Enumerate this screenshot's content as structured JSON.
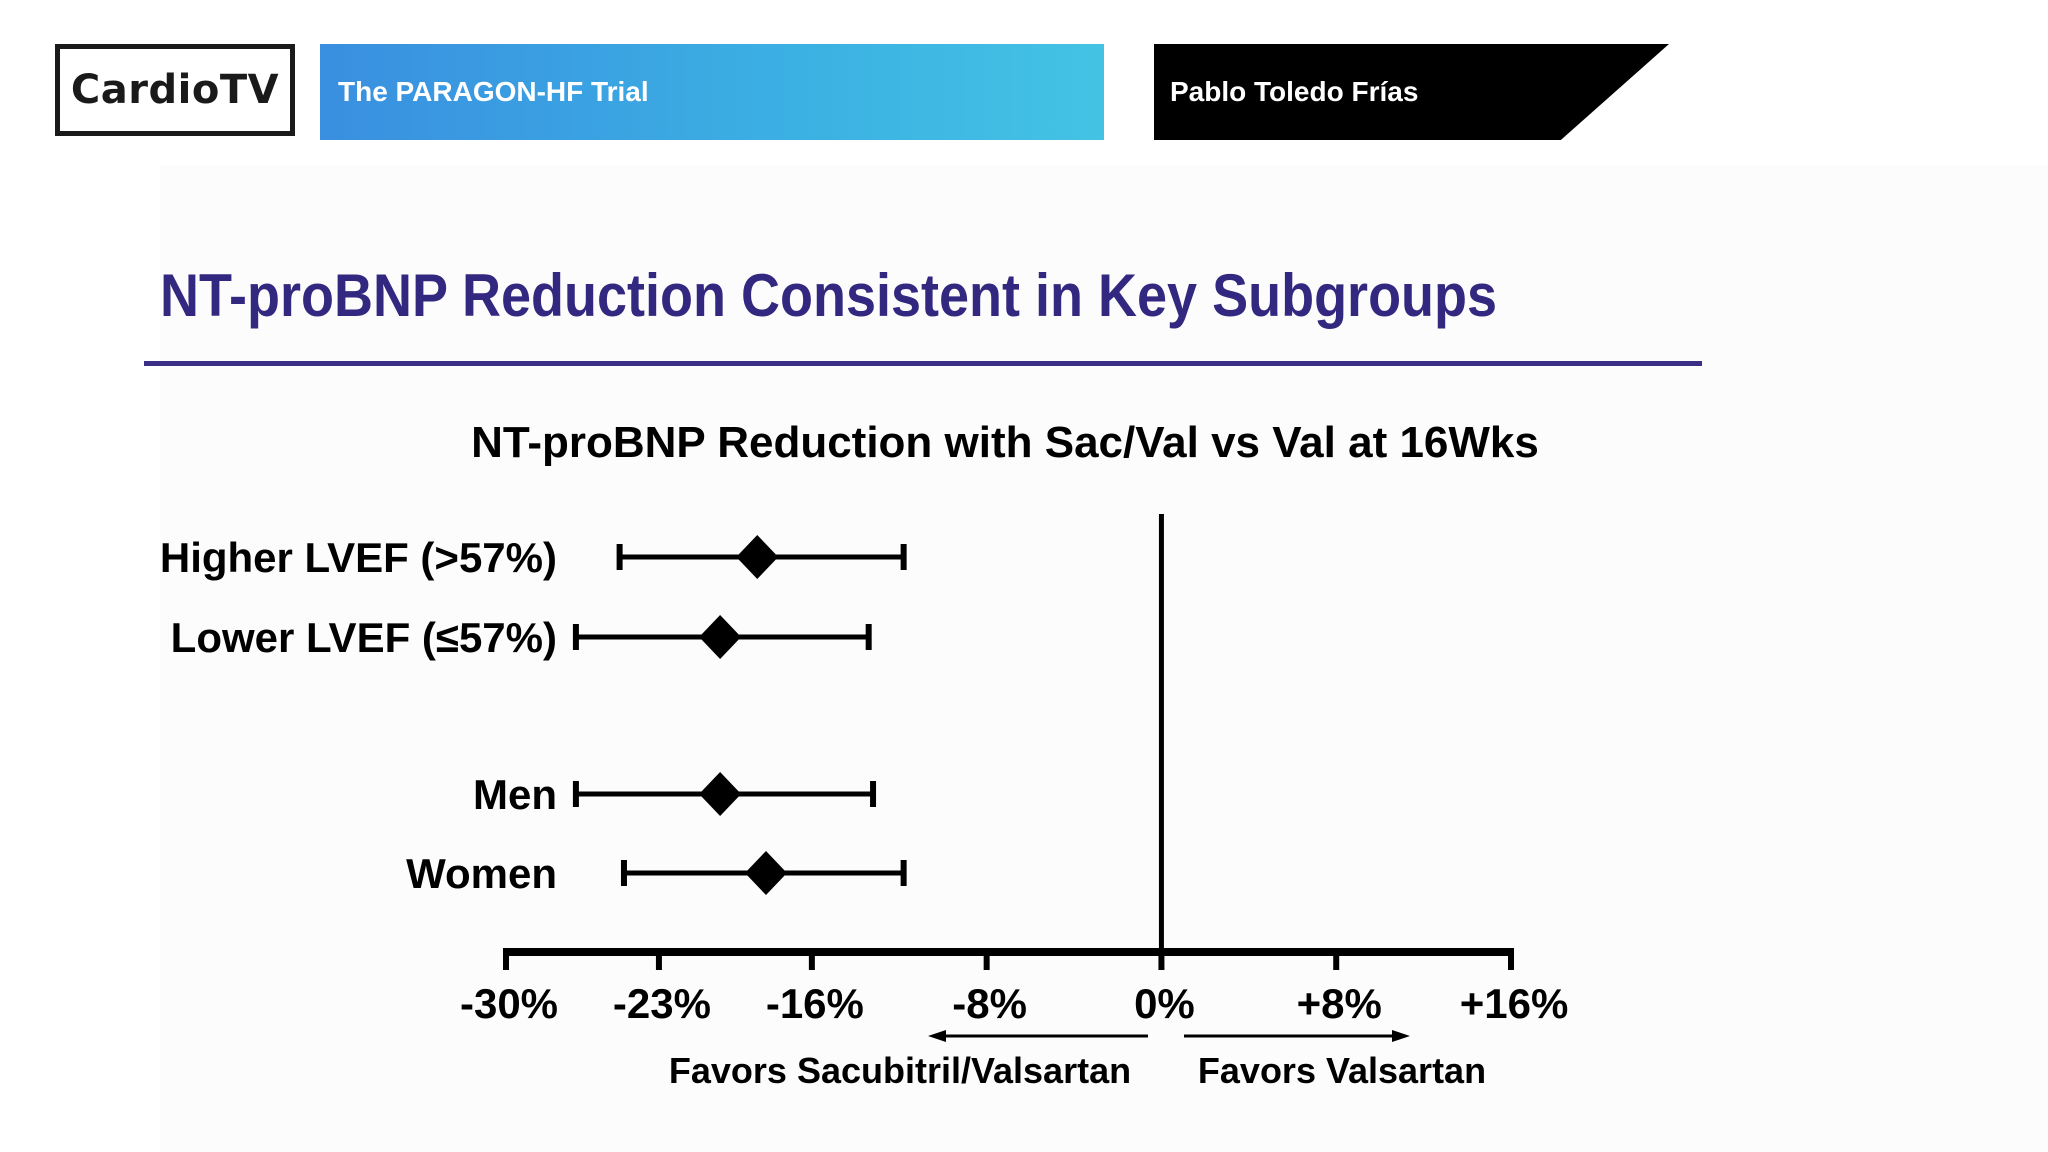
{
  "header": {
    "logo": "CardioTV",
    "trial_name": "The PARAGON-HF Trial",
    "presenter": "Pablo Toledo Frías"
  },
  "slide": {
    "title": "NT-proBNP Reduction Consistent in Key Subgroups"
  },
  "colors": {
    "title": "#33287f",
    "trial_bar_start": "#3a8fe0",
    "trial_bar_end": "#44c3e4"
  },
  "chart_data": {
    "type": "forest",
    "title": "NT-proBNP Reduction with Sac/Val vs Val at 16Wks",
    "categories": [
      "Higher LVEF (>57%)",
      "Lower LVEF (≤57%)",
      "Men",
      "Women"
    ],
    "groups": [
      [
        0,
        1
      ],
      [
        2,
        3
      ]
    ],
    "series": [
      {
        "name": "Higher LVEF (>57%)",
        "estimate": -18.5,
        "lower": -24.8,
        "upper": -11.8
      },
      {
        "name": "Lower LVEF (≤57%)",
        "estimate": -20.2,
        "lower": -26.8,
        "upper": -13.4
      },
      {
        "name": "Men",
        "estimate": -20.2,
        "lower": -26.8,
        "upper": -13.2
      },
      {
        "name": "Women",
        "estimate": -18.1,
        "lower": -24.6,
        "upper": -11.8
      }
    ],
    "x_ticks": [
      -30,
      -23,
      -16,
      -8,
      0,
      8,
      16
    ],
    "x_tick_labels": [
      "-30%",
      "-23%",
      "-16%",
      "-8%",
      "0%",
      "+8%",
      "+16%"
    ],
    "xlim": [
      -30,
      16
    ],
    "reference_line": 0,
    "direction_labels": {
      "left": "Favors Sacubitril/Valsartan",
      "right": "Favors Valsartan"
    }
  }
}
